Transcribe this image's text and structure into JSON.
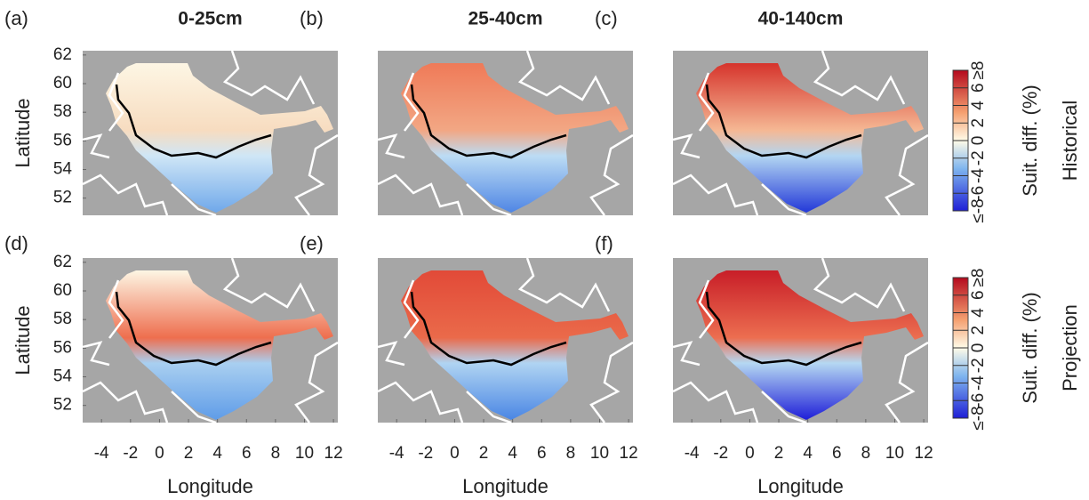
{
  "panels": [
    {
      "label": "(a)",
      "title": "0-25cm"
    },
    {
      "label": "(b)",
      "title": "25-40cm"
    },
    {
      "label": "(c)",
      "title": "40-140cm"
    },
    {
      "label": "(d)"
    },
    {
      "label": "(e)"
    },
    {
      "label": "(f)"
    }
  ],
  "rows": [
    "Historical",
    "Projection"
  ],
  "x_axis": {
    "label": "Longitude",
    "lim": [
      -5.3,
      12.3
    ],
    "ticks": [
      -4,
      -2,
      0,
      2,
      4,
      6,
      8,
      10,
      12
    ]
  },
  "y_axis": {
    "label": "Latitude",
    "lim": [
      50.8,
      62.3
    ],
    "ticks": [
      52,
      54,
      56,
      58,
      60,
      62
    ]
  },
  "colorbar": {
    "label": "Suit. diff. (%)",
    "lim": [
      -8,
      8
    ],
    "ticks": [
      {
        "value": 8,
        "label": "≥8"
      },
      6,
      4,
      2,
      0,
      -2,
      -4,
      -6,
      {
        "value": -8,
        "label": "≤-8"
      }
    ]
  }
}
